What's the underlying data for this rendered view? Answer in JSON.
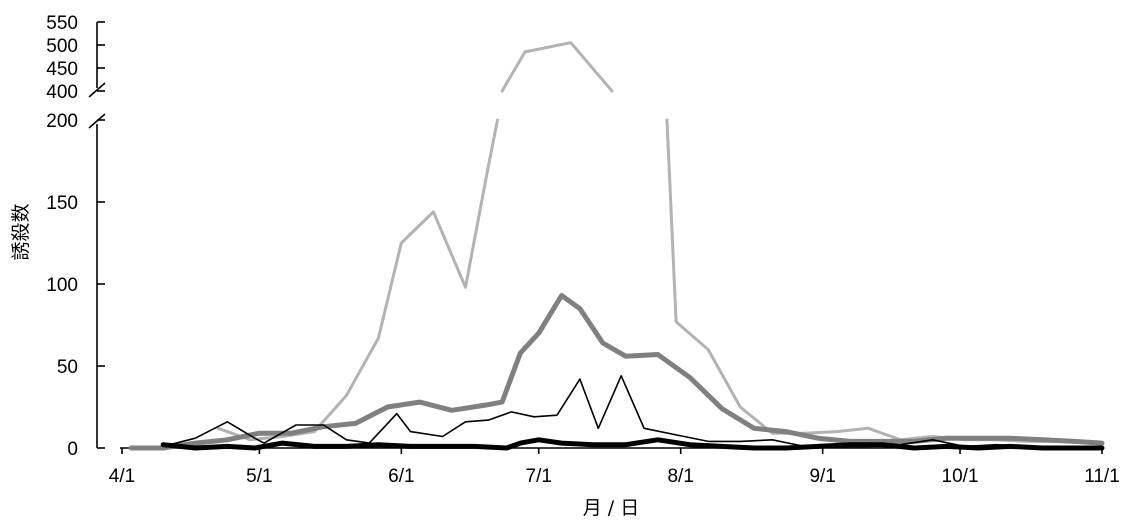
{
  "chart_data": {
    "type": "line",
    "xlabel": "月 / 日",
    "ylabel": "誘殺数",
    "x_ticks": [
      "4/1",
      "5/1",
      "6/1",
      "7/1",
      "8/1",
      "9/1",
      "10/1",
      "11/1"
    ],
    "y_ticks_lower": [
      0,
      50,
      100,
      150,
      200
    ],
    "y_ticks_upper": [
      400,
      450,
      500,
      550
    ],
    "ylim_lower": [
      0,
      200
    ],
    "ylim_upper": [
      400,
      550
    ],
    "y_axis_break": true,
    "grid": false,
    "legend": "none",
    "series": [
      {
        "color": "#b3b3b3",
        "stroke_width": 3,
        "segments": [
          {
            "x": [
              "4/22",
              "4/29",
              "5/6",
              "5/13",
              "5/20",
              "5/27",
              "6/1",
              "6/8",
              "6/15",
              "6/20",
              "6/22"
            ],
            "y": [
              12,
              5,
              7,
              10,
              32,
              67,
              125,
              144,
              98,
              172,
              200
            ]
          },
          {
            "x": [
              "6/23",
              "6/28",
              "7/8",
              "7/17"
            ],
            "y": [
              400,
              485,
              505,
              400
            ]
          },
          {
            "x": [
              "7/29",
              "7/31",
              "8/7",
              "8/14",
              "8/21",
              "8/28",
              "9/4",
              "9/11",
              "9/18",
              "9/25",
              "10/2",
              "10/9",
              "10/16",
              "10/23",
              "10/30",
              "11/1"
            ],
            "y": [
              200,
              77,
              60,
              25,
              9,
              9,
              10,
              12,
              5,
              7,
              5,
              5,
              4,
              4,
              3,
              3
            ]
          }
        ]
      },
      {
        "color": "#808080",
        "stroke_width": 5,
        "segments": [
          {
            "x": [
              "4/3",
              "4/10",
              "4/17",
              "4/24",
              "5/1",
              "5/8",
              "5/15",
              "5/22",
              "5/29",
              "6/5",
              "6/12",
              "6/19",
              "6/23",
              "6/27",
              "7/1",
              "7/6",
              "7/10",
              "7/15",
              "7/20",
              "7/27",
              "8/3",
              "8/10",
              "8/17",
              "8/24",
              "8/31",
              "9/7",
              "9/14",
              "9/21",
              "9/28",
              "10/5",
              "10/12",
              "10/19",
              "10/26",
              "11/1"
            ],
            "y": [
              0,
              0,
              3,
              5,
              9,
              9,
              13,
              15,
              25,
              28,
              23,
              26,
              28,
              58,
              70,
              93,
              85,
              64,
              56,
              57,
              43,
              24,
              12,
              10,
              6,
              4,
              4,
              4,
              6,
              6,
              6,
              5,
              4,
              3
            ]
          }
        ]
      },
      {
        "color": "#000000",
        "stroke_width": 1.6,
        "segments": [
          {
            "x": [
              "4/10",
              "4/17",
              "4/24",
              "4/30",
              "5/2",
              "5/9",
              "5/15",
              "5/20",
              "5/25",
              "5/31",
              "6/3",
              "6/10",
              "6/15",
              "6/20",
              "6/25",
              "6/30",
              "7/5",
              "7/10",
              "7/14",
              "7/19",
              "7/24",
              "7/31",
              "8/7",
              "8/14",
              "8/21",
              "8/28",
              "9/4",
              "9/11",
              "9/18",
              "9/25",
              "10/2",
              "10/9",
              "10/16",
              "10/23",
              "10/30",
              "11/1"
            ],
            "y": [
              1,
              6,
              16,
              6,
              3,
              14,
              14,
              5,
              3,
              21,
              10,
              7,
              16,
              17,
              22,
              19,
              20,
              42,
              12,
              44,
              12,
              8,
              4,
              4,
              5,
              1,
              1,
              1,
              2,
              5,
              1,
              2,
              1,
              1,
              1,
              1
            ]
          }
        ]
      },
      {
        "color": "#000000",
        "stroke_width": 5,
        "segments": [
          {
            "x": [
              "4/10",
              "4/17",
              "4/24",
              "4/30",
              "5/6",
              "5/13",
              "5/20",
              "5/27",
              "6/3",
              "6/10",
              "6/17",
              "6/24",
              "6/27",
              "7/1",
              "7/6",
              "7/13",
              "7/20",
              "7/27",
              "8/3",
              "8/10",
              "8/17",
              "8/24",
              "8/31",
              "9/7",
              "9/14",
              "9/21",
              "9/28",
              "10/5",
              "10/12",
              "10/19",
              "10/26",
              "11/1"
            ],
            "y": [
              2,
              0,
              1,
              0,
              3,
              1,
              1,
              2,
              1,
              1,
              1,
              0,
              3,
              5,
              3,
              2,
              2,
              5,
              2,
              1,
              0,
              0,
              1,
              2,
              2,
              0,
              1,
              0,
              1,
              0,
              0,
              0
            ]
          }
        ]
      }
    ]
  }
}
